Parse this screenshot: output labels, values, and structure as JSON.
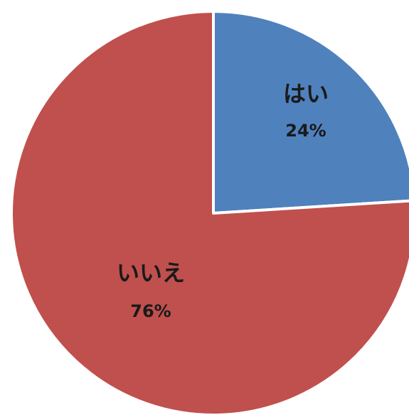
{
  "chart_data": {
    "type": "pie",
    "title": "",
    "start_angle_deg": 0,
    "direction": "clockwise",
    "slices": [
      {
        "label": "はい",
        "value": 24,
        "value_label": "24%",
        "color": "#4f81bd"
      },
      {
        "label": "いいえ",
        "value": 76,
        "value_label": "76%",
        "color": "#c0504d"
      }
    ],
    "border_color": "#ffffff"
  }
}
